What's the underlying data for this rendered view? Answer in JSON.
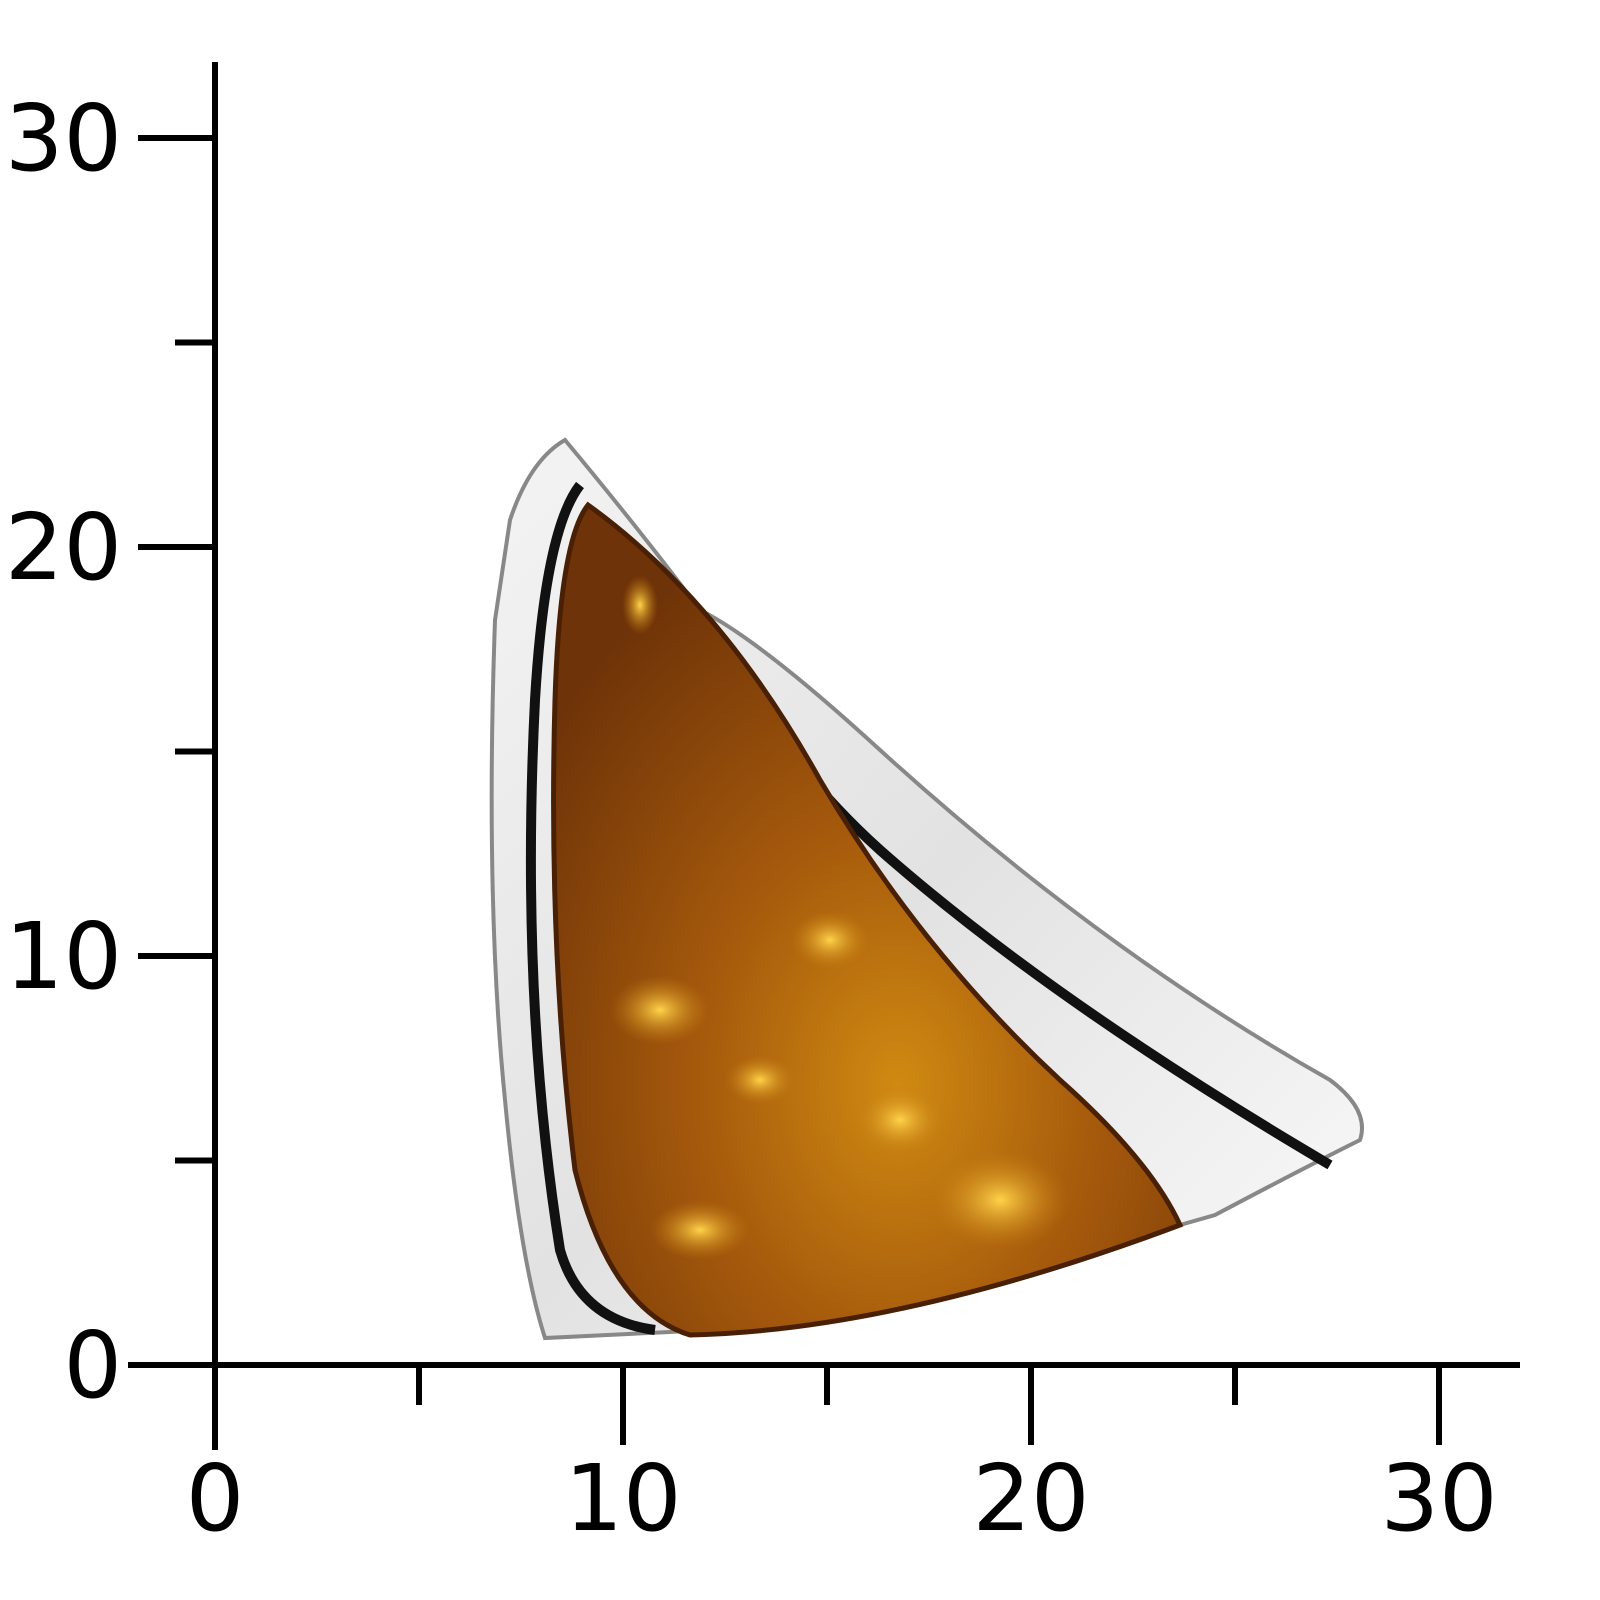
{
  "x_axis": {
    "ticks": [
      0,
      10,
      20,
      30
    ],
    "minor_ticks": [
      5,
      15,
      25
    ]
  },
  "y_axis": {
    "ticks": [
      0,
      10,
      20,
      30
    ],
    "minor_ticks": [
      5,
      15,
      25
    ]
  }
}
